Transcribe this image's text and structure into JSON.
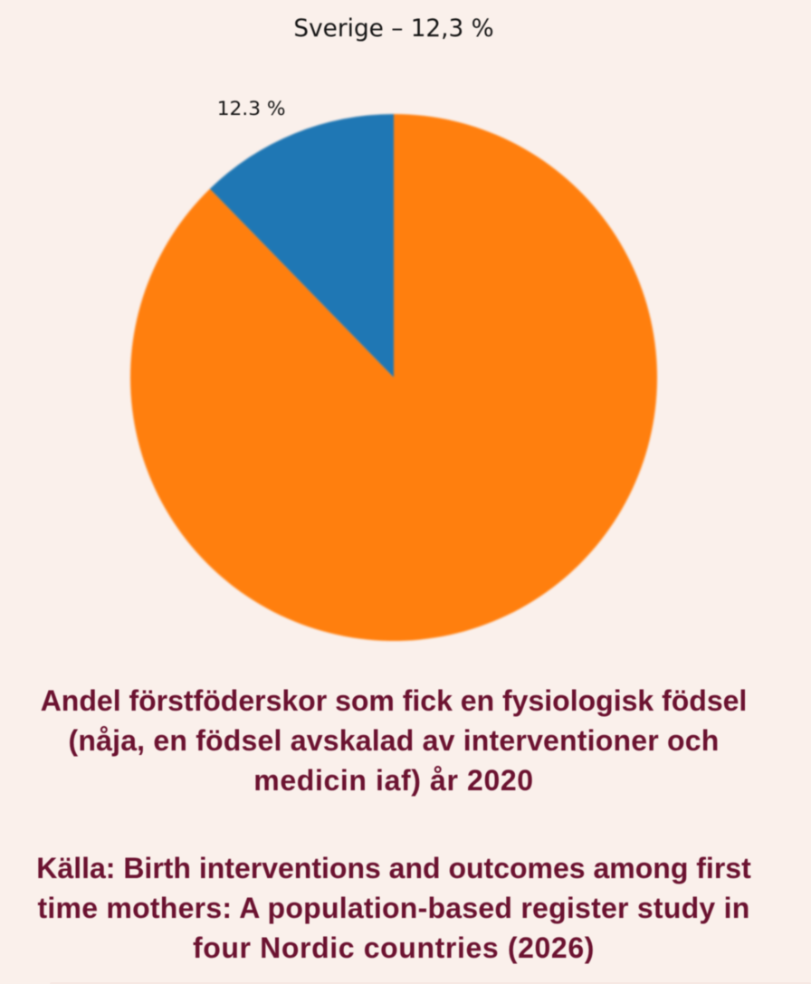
{
  "chart_data": {
    "type": "pie",
    "title": "Sverige – 12,3 %",
    "slices": [
      {
        "label": "12.3 %",
        "value": 12.3,
        "color": "#1f77b4"
      },
      {
        "label": "",
        "value": 87.7,
        "color": "#ff7f0e"
      }
    ],
    "start_angle_deg": 90,
    "counterclockwise": true,
    "legend": false,
    "background": "#faf0eb"
  },
  "caption": {
    "text": "Andel förstföderskor som fick en fysiologisk födsel (nåja, en födsel avskalad av interventioner och medicin iaf) år 2020",
    "lines": [
      "Andel förstföderskor som fick en fysiologisk födsel",
      "(nåja, en födsel avskalad av interventioner och",
      "medicin iaf) år 2020"
    ],
    "color": "#6b1230"
  },
  "source": {
    "text": "Källa: Birth interventions and outcomes among first time mothers: A population-based register study in four Nordic countries (2026)",
    "lines": [
      "Källa: Birth interventions and outcomes among first",
      "time mothers: A population-based register study in",
      "four Nordic countries (2026)"
    ],
    "color": "#6b1230"
  },
  "colors": {
    "page_background": "#faf0eb",
    "title_text": "#1c1c1c",
    "caption_text": "#6b1230",
    "pie_highlight": "#1f77b4",
    "pie_rest": "#ff7f0e"
  }
}
